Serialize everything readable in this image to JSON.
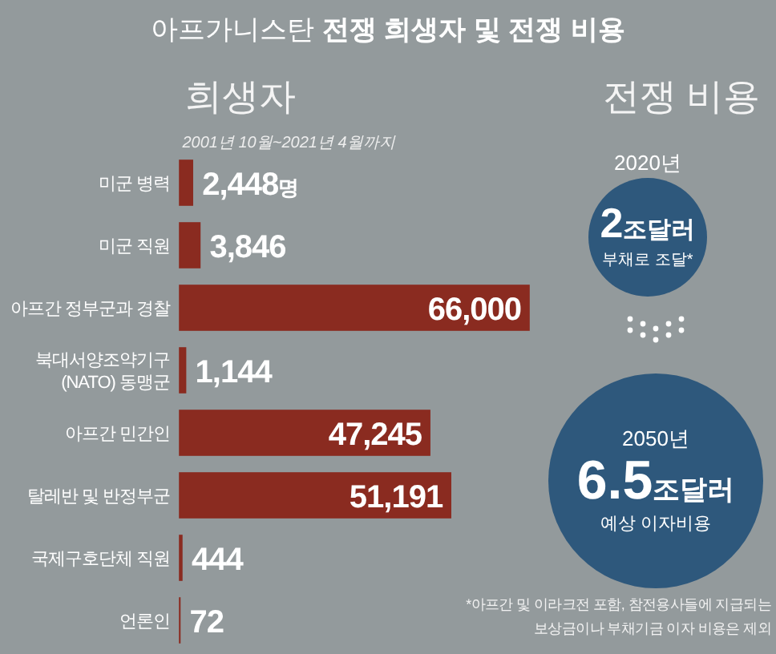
{
  "chart_data": [
    {
      "type": "bar",
      "orientation": "horizontal",
      "title": "아프가니스탄 전쟁 희생자 및 전쟁 비용",
      "subtitle": "희생자",
      "annotations": [
        "2001년 10월~2021년 4월까지"
      ],
      "categories": [
        "미군 병력",
        "미군 직원",
        "아프간 정부군과 경찰",
        "북대서양조약기구\n(NATO) 동맹군",
        "아프간 민간인",
        "탈레반 및 반정부군",
        "국제구호단체 직원",
        "언론인"
      ],
      "values": [
        2448,
        3846,
        66000,
        1144,
        47245,
        51191,
        444,
        72
      ],
      "color": "#8a2b20",
      "value_labels": [
        "2,448명",
        "3,846",
        "66,000",
        "1,144",
        "47,245",
        "51,191",
        "444",
        "72"
      ]
    },
    {
      "type": "other",
      "title": "전쟁 비용",
      "annotations": [
        "2020년",
        "2조달러",
        "부채로 조달*",
        "2050년",
        "6.5조달러",
        "예상 이자비용",
        "*아프간 및 이라크전 포함, 참전용사들에 지급되는\n보상금이나 부채기금 이자 비용은 제외"
      ]
    }
  ]
}
